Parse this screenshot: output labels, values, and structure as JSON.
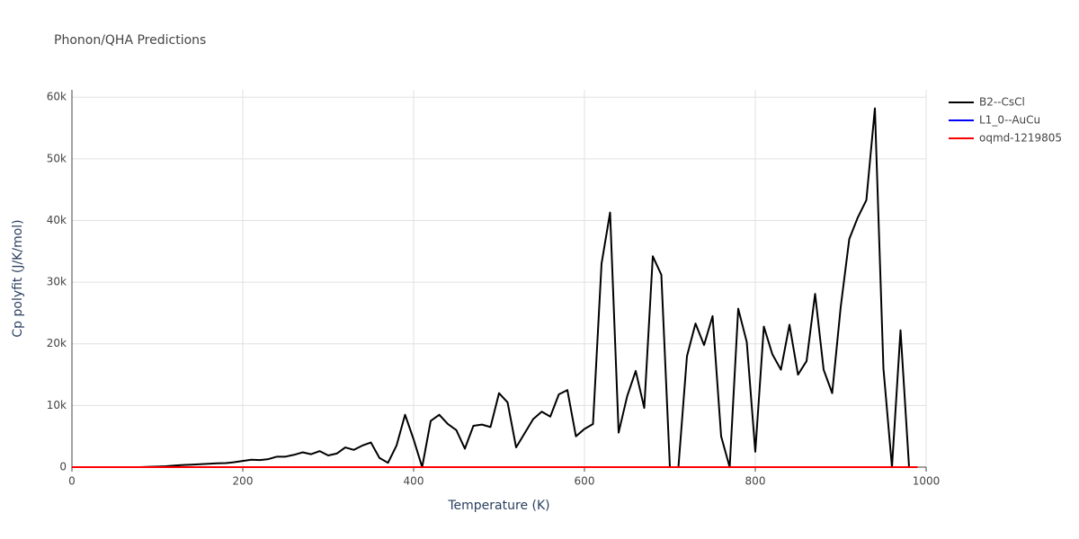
{
  "chart_data": {
    "type": "line",
    "title": "Phonon/QHA Predictions",
    "x_label": "Temperature (K)",
    "y_label": "Cp polyfit (J/K/mol)",
    "x": [
      0,
      10,
      20,
      30,
      40,
      50,
      60,
      70,
      80,
      90,
      100,
      110,
      120,
      130,
      140,
      150,
      160,
      170,
      180,
      190,
      200,
      210,
      220,
      230,
      240,
      250,
      260,
      270,
      280,
      290,
      300,
      310,
      320,
      330,
      340,
      350,
      360,
      370,
      380,
      390,
      400,
      410,
      420,
      430,
      440,
      450,
      460,
      470,
      480,
      490,
      500,
      510,
      520,
      530,
      540,
      550,
      560,
      570,
      580,
      590,
      600,
      610,
      620,
      630,
      640,
      650,
      660,
      670,
      680,
      690,
      700,
      710,
      720,
      730,
      740,
      750,
      760,
      770,
      780,
      790,
      800,
      810,
      820,
      830,
      840,
      850,
      860,
      870,
      880,
      890,
      900,
      910,
      920,
      930,
      940,
      950,
      960,
      970,
      980,
      990
    ],
    "series": [
      {
        "name": "B2--CsCl",
        "color": "#000000",
        "values": [
          0,
          0,
          0,
          0,
          0,
          0,
          0,
          0,
          0,
          50,
          100,
          150,
          250,
          350,
          400,
          480,
          550,
          620,
          650,
          800,
          1000,
          1200,
          1150,
          1300,
          1700,
          1700,
          2000,
          2400,
          2100,
          2600,
          1900,
          2200,
          3200,
          2800,
          3500,
          4000,
          1500,
          700,
          3500,
          8500,
          4500,
          0,
          7500,
          8500,
          7000,
          6000,
          3000,
          6700,
          6900,
          6500,
          12000,
          10500,
          3200,
          5500,
          7800,
          9000,
          8200,
          11800,
          12500,
          5000,
          6200,
          7000,
          33000,
          41300,
          5600,
          11500,
          15600,
          9600,
          34200,
          31200,
          0,
          0,
          18000,
          23300,
          19800,
          24500,
          5000,
          0,
          25700,
          20300,
          2500,
          22800,
          18300,
          15800,
          23100,
          15000,
          17200,
          28100,
          15800,
          12000,
          26000,
          37000,
          40500,
          43300,
          58200,
          16000,
          0,
          22200,
          0,
          null
        ]
      },
      {
        "name": "L1_0--AuCu",
        "color": "#0000ff",
        "values": [
          0,
          0,
          0,
          0,
          0,
          0,
          0,
          0,
          0,
          0,
          0,
          0,
          0,
          0,
          0,
          0,
          0,
          0,
          0,
          0,
          0,
          0,
          0,
          0,
          0,
          0,
          0,
          0,
          0,
          0,
          0,
          0,
          0,
          0,
          0,
          0,
          0,
          0,
          0,
          0,
          0,
          0,
          0,
          0,
          0,
          0,
          0,
          0,
          0,
          0,
          0,
          0,
          0,
          0,
          0,
          0,
          0,
          0,
          0,
          0,
          0,
          0,
          0,
          0,
          0,
          0,
          0,
          0,
          0,
          0,
          0,
          0,
          0,
          0,
          0,
          0,
          0,
          0,
          0,
          0,
          0,
          0,
          0,
          0,
          0,
          0,
          0,
          0,
          0,
          0,
          0,
          0,
          0,
          0,
          0,
          0,
          0,
          0,
          0,
          0
        ]
      },
      {
        "name": "oqmd-1219805",
        "color": "#ff0000",
        "values": [
          0,
          0,
          0,
          0,
          0,
          0,
          0,
          0,
          0,
          0,
          0,
          0,
          0,
          0,
          0,
          0,
          0,
          0,
          0,
          0,
          0,
          0,
          0,
          0,
          0,
          0,
          0,
          0,
          0,
          0,
          0,
          0,
          0,
          0,
          0,
          0,
          0,
          0,
          0,
          0,
          0,
          0,
          0,
          0,
          0,
          0,
          0,
          0,
          0,
          0,
          0,
          0,
          0,
          0,
          0,
          0,
          0,
          0,
          0,
          0,
          0,
          0,
          0,
          0,
          0,
          0,
          0,
          0,
          0,
          0,
          0,
          0,
          0,
          0,
          0,
          0,
          0,
          0,
          0,
          0,
          0,
          0,
          0,
          0,
          0,
          0,
          0,
          0,
          0,
          0,
          0,
          0,
          0,
          0,
          0,
          0,
          0,
          0,
          0,
          0
        ]
      }
    ],
    "xlim": [
      0,
      1000
    ],
    "xticks": [
      0,
      200,
      400,
      600,
      800,
      1000
    ],
    "ylim": [
      0,
      61200
    ],
    "yticks": [
      0,
      {
        "value": 10000,
        "label": "10k"
      },
      {
        "value": 20000,
        "label": "20k"
      },
      {
        "value": 30000,
        "label": "30k"
      },
      {
        "value": 40000,
        "label": "40k"
      },
      {
        "value": 50000,
        "label": "50k"
      },
      {
        "value": 60000,
        "label": "60k"
      }
    ],
    "grid": true,
    "legend": "right"
  }
}
